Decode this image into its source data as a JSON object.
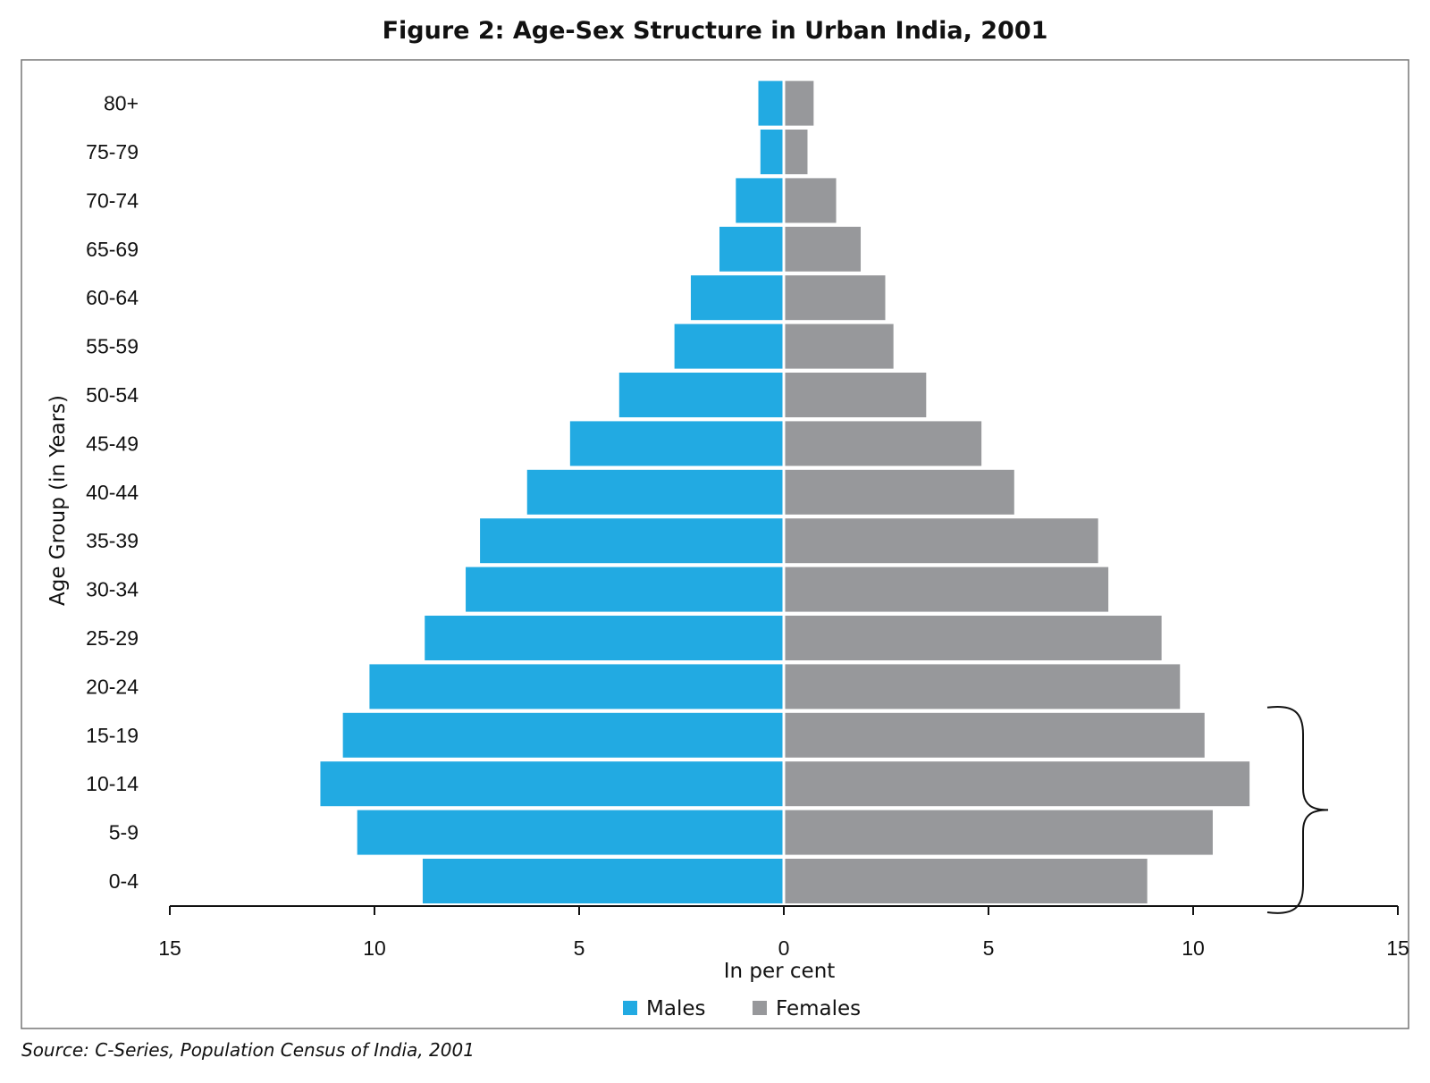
{
  "chart_data": {
    "type": "bar",
    "orientation": "horizontal",
    "subtype": "population-pyramid",
    "title": "Figure 2: Age-Sex Structure in Urban India, 2001",
    "xlabel": "In per cent",
    "ylabel": "Age Group (in Years)",
    "xlim": [
      -15,
      15
    ],
    "x_ticks": [
      "15",
      "10",
      "5",
      "0",
      "5",
      "10",
      "15"
    ],
    "categories": [
      "0-4",
      "5-9",
      "10-14",
      "15-19",
      "20-24",
      "25-29",
      "30-34",
      "35-39",
      "40-44",
      "45-49",
      "50-54",
      "55-59",
      "60-64",
      "65-69",
      "70-74",
      "75-79",
      "80+"
    ],
    "series": [
      {
        "name": "Males",
        "color": "#22aae2",
        "values": [
          8.8,
          10.4,
          11.3,
          10.75,
          10.1,
          8.75,
          7.75,
          7.4,
          6.25,
          5.2,
          4.0,
          2.65,
          2.25,
          1.55,
          1.15,
          0.55,
          0.6
        ]
      },
      {
        "name": "Females",
        "color": "#97989b",
        "values": [
          8.9,
          10.5,
          11.4,
          10.3,
          9.7,
          9.25,
          7.95,
          7.7,
          5.65,
          4.85,
          3.5,
          2.7,
          2.5,
          1.9,
          1.3,
          0.6,
          0.75
        ]
      }
    ],
    "legend": {
      "placement": "bottom-center",
      "entries": [
        "Males",
        "Females"
      ]
    },
    "annotations": [
      {
        "type": "brace",
        "spans_categories": [
          "0-4",
          "15-19"
        ],
        "side": "right"
      }
    ],
    "grid": false
  },
  "source": "Source: C-Series, Population Census of India, 2001"
}
